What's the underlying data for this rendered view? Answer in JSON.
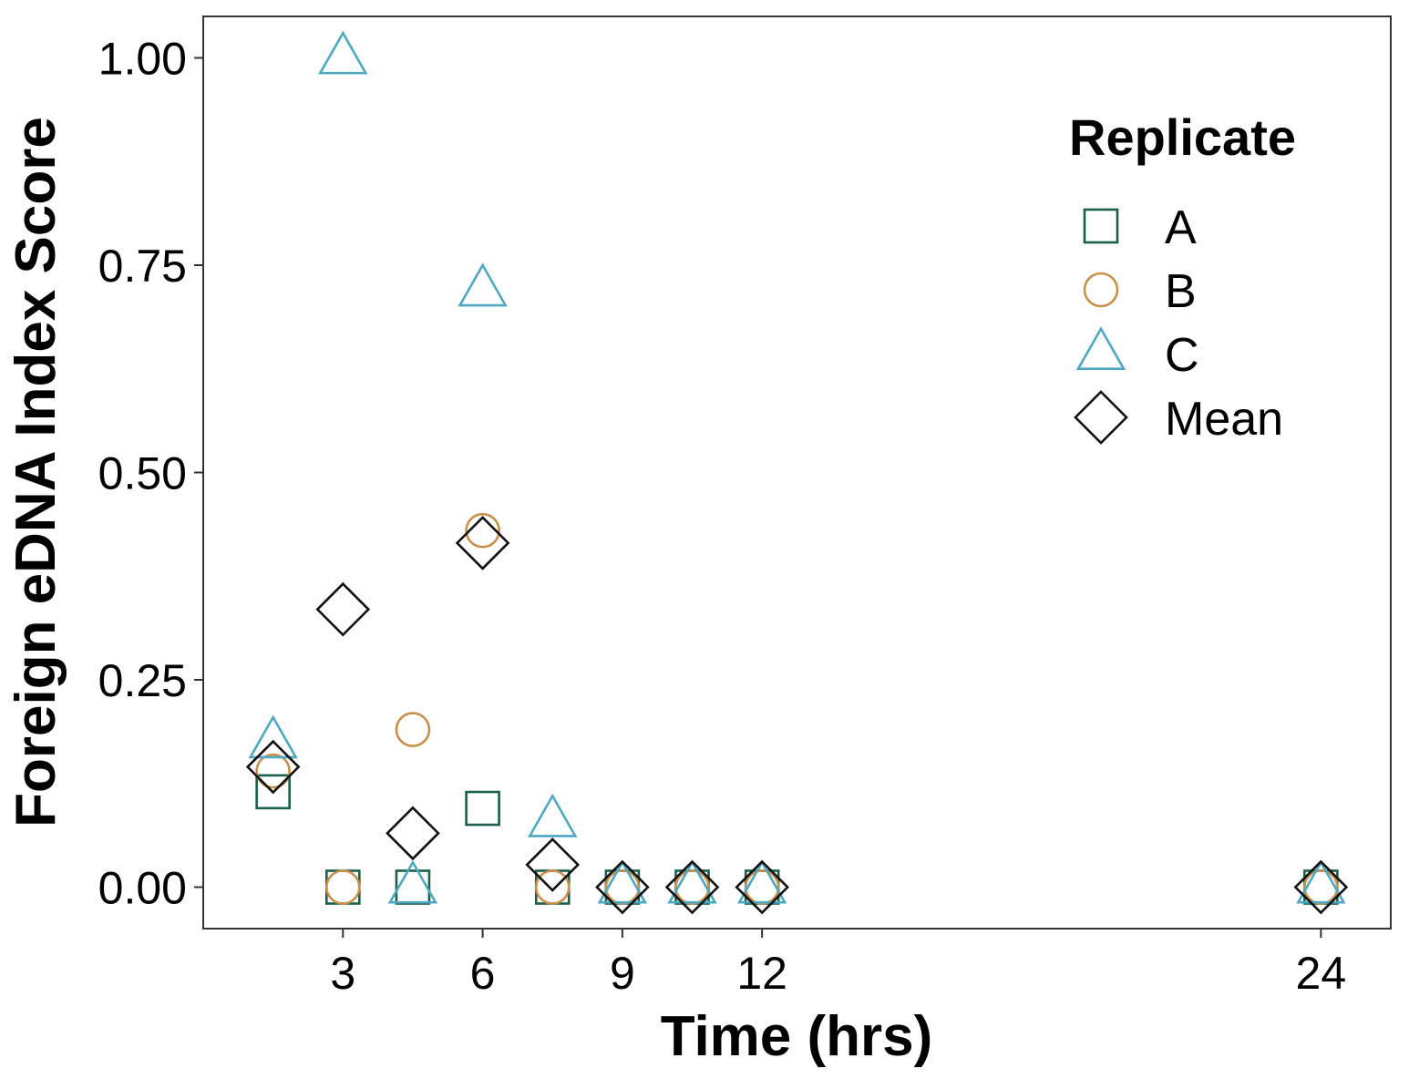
{
  "chart_data": {
    "type": "scatter",
    "xlabel": "Time (hrs)",
    "ylabel": "Foreign eDNA Index Score",
    "xlim": [
      0,
      25.5
    ],
    "ylim": [
      -0.05,
      1.05
    ],
    "x_ticks": [
      3,
      6,
      9,
      12,
      24
    ],
    "y_ticks": [
      0,
      0.25,
      0.5,
      0.75,
      1.0
    ],
    "y_tick_labels": [
      "0.00",
      "0.25",
      "0.50",
      "0.75",
      "1.00"
    ],
    "x_tick_labels": [
      "3",
      "6",
      "9",
      "12",
      "24"
    ],
    "grid": false,
    "legend": {
      "title": "Replicate",
      "placement": "top-right",
      "entries": [
        "A",
        "B",
        "C",
        "Mean"
      ]
    },
    "series": [
      {
        "name": "A",
        "marker": "square",
        "color": "#1b5e4b",
        "x": [
          1.5,
          3,
          4.5,
          6,
          7.5,
          9,
          10.5,
          12,
          24
        ],
        "y": [
          0.115,
          0,
          0,
          0.095,
          0,
          0,
          0,
          0,
          0
        ]
      },
      {
        "name": "B",
        "marker": "circle",
        "color": "#c8904a",
        "x": [
          1.5,
          3,
          4.5,
          6,
          7.5,
          9,
          10.5,
          12,
          24
        ],
        "y": [
          0.14,
          0,
          0.19,
          0.43,
          0,
          0,
          0,
          0,
          0
        ]
      },
      {
        "name": "C",
        "marker": "triangle",
        "color": "#4fa8c2",
        "x": [
          1.5,
          3,
          4.5,
          6,
          7.5,
          9,
          10.5,
          12,
          24
        ],
        "y": [
          0.175,
          1.0,
          0,
          0.72,
          0.08,
          0,
          0,
          0,
          0
        ]
      },
      {
        "name": "Mean",
        "marker": "diamond",
        "color": "#111111",
        "x": [
          1.5,
          3,
          4.5,
          6,
          7.5,
          9,
          10.5,
          12,
          24
        ],
        "y": [
          0.145,
          0.335,
          0.065,
          0.415,
          0.027,
          0,
          0,
          0,
          0
        ]
      }
    ]
  }
}
